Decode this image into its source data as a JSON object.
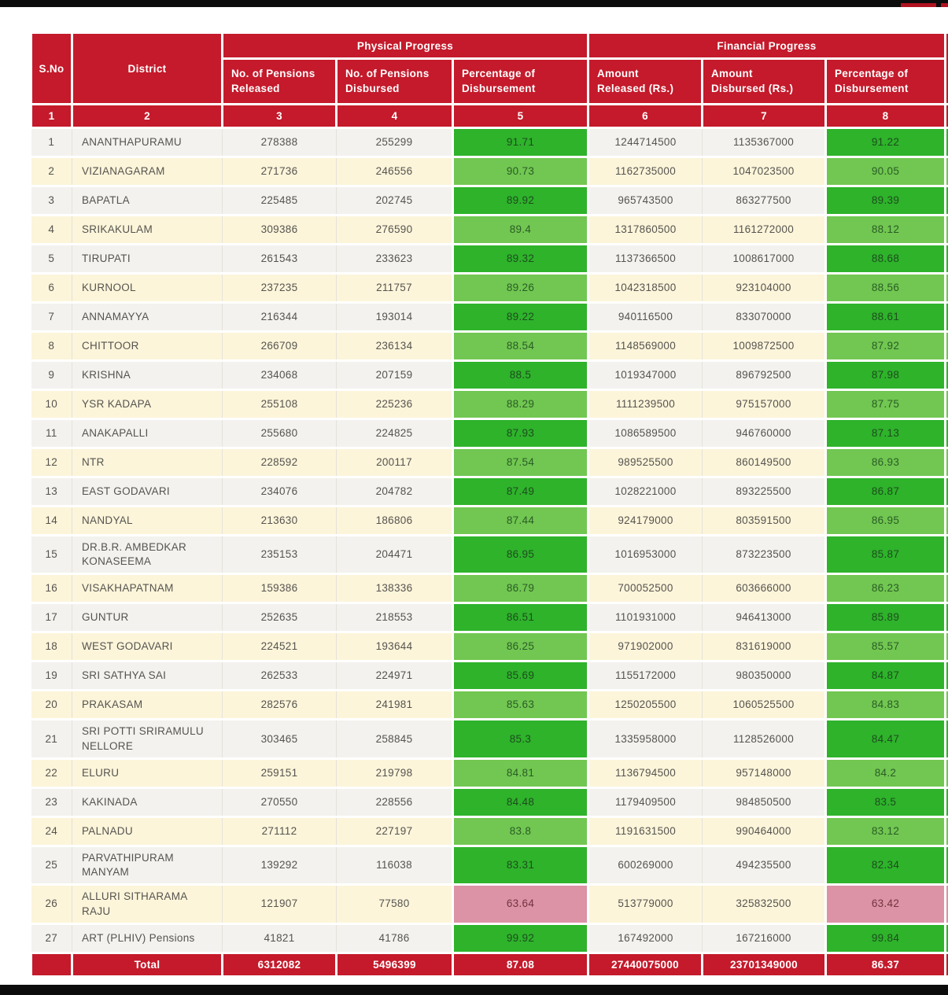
{
  "colors": {
    "header_red": "#c41a2b",
    "dark_green": "#2eb32b",
    "light_green": "#71c751",
    "low_performance_pink": "#db93a5",
    "row_stripe_gray": "#f3f2ef",
    "row_stripe_cream": "#fcf5da",
    "chrome_bar_black": "#0c0c0c"
  },
  "table": {
    "groups": [
      {
        "label": "Physical Progress"
      },
      {
        "label": "Financial Progress"
      }
    ],
    "columns": [
      {
        "label": "S.No",
        "num": "1"
      },
      {
        "label": "District",
        "num": "2"
      },
      {
        "label": "No. of Pensions\nReleased",
        "num": "3"
      },
      {
        "label": "No. of Pensions\nDisbursed",
        "num": "4"
      },
      {
        "label": "Percentage of\nDisbursement",
        "num": "5"
      },
      {
        "label": "Amount\nReleased (Rs.)",
        "num": "6"
      },
      {
        "label": "Amount\nDisbursed (Rs.)",
        "num": "7"
      },
      {
        "label": "Percentage of\nDisbursement",
        "num": "8"
      }
    ],
    "rows": [
      {
        "sno": "1",
        "district": "ANANTHAPURAMU",
        "pensions_released": "278388",
        "pensions_disbursed": "255299",
        "pct_physical": "91.71",
        "amount_released": "1244714500",
        "amount_disbursed": "1135367000",
        "pct_financial": "91.22",
        "tone": "dg"
      },
      {
        "sno": "2",
        "district": "VIZIANAGARAM",
        "pensions_released": "271736",
        "pensions_disbursed": "246556",
        "pct_physical": "90.73",
        "amount_released": "1162735000",
        "amount_disbursed": "1047023500",
        "pct_financial": "90.05",
        "tone": "lg"
      },
      {
        "sno": "3",
        "district": "BAPATLA",
        "pensions_released": "225485",
        "pensions_disbursed": "202745",
        "pct_physical": "89.92",
        "amount_released": "965743500",
        "amount_disbursed": "863277500",
        "pct_financial": "89.39",
        "tone": "dg"
      },
      {
        "sno": "4",
        "district": "SRIKAKULAM",
        "pensions_released": "309386",
        "pensions_disbursed": "276590",
        "pct_physical": "89.4",
        "amount_released": "1317860500",
        "amount_disbursed": "1161272000",
        "pct_financial": "88.12",
        "tone": "lg"
      },
      {
        "sno": "5",
        "district": "TIRUPATI",
        "pensions_released": "261543",
        "pensions_disbursed": "233623",
        "pct_physical": "89.32",
        "amount_released": "1137366500",
        "amount_disbursed": "1008617000",
        "pct_financial": "88.68",
        "tone": "dg"
      },
      {
        "sno": "6",
        "district": "KURNOOL",
        "pensions_released": "237235",
        "pensions_disbursed": "211757",
        "pct_physical": "89.26",
        "amount_released": "1042318500",
        "amount_disbursed": "923104000",
        "pct_financial": "88.56",
        "tone": "lg"
      },
      {
        "sno": "7",
        "district": "ANNAMAYYA",
        "pensions_released": "216344",
        "pensions_disbursed": "193014",
        "pct_physical": "89.22",
        "amount_released": "940116500",
        "amount_disbursed": "833070000",
        "pct_financial": "88.61",
        "tone": "dg"
      },
      {
        "sno": "8",
        "district": "CHITTOOR",
        "pensions_released": "266709",
        "pensions_disbursed": "236134",
        "pct_physical": "88.54",
        "amount_released": "1148569000",
        "amount_disbursed": "1009872500",
        "pct_financial": "87.92",
        "tone": "lg"
      },
      {
        "sno": "9",
        "district": "KRISHNA",
        "pensions_released": "234068",
        "pensions_disbursed": "207159",
        "pct_physical": "88.5",
        "amount_released": "1019347000",
        "amount_disbursed": "896792500",
        "pct_financial": "87.98",
        "tone": "dg"
      },
      {
        "sno": "10",
        "district": "YSR KADAPA",
        "pensions_released": "255108",
        "pensions_disbursed": "225236",
        "pct_physical": "88.29",
        "amount_released": "1111239500",
        "amount_disbursed": "975157000",
        "pct_financial": "87.75",
        "tone": "lg"
      },
      {
        "sno": "11",
        "district": "ANAKAPALLI",
        "pensions_released": "255680",
        "pensions_disbursed": "224825",
        "pct_physical": "87.93",
        "amount_released": "1086589500",
        "amount_disbursed": "946760000",
        "pct_financial": "87.13",
        "tone": "dg"
      },
      {
        "sno": "12",
        "district": "NTR",
        "pensions_released": "228592",
        "pensions_disbursed": "200117",
        "pct_physical": "87.54",
        "amount_released": "989525500",
        "amount_disbursed": "860149500",
        "pct_financial": "86.93",
        "tone": "lg"
      },
      {
        "sno": "13",
        "district": "EAST GODAVARI",
        "pensions_released": "234076",
        "pensions_disbursed": "204782",
        "pct_physical": "87.49",
        "amount_released": "1028221000",
        "amount_disbursed": "893225500",
        "pct_financial": "86.87",
        "tone": "dg"
      },
      {
        "sno": "14",
        "district": "NANDYAL",
        "pensions_released": "213630",
        "pensions_disbursed": "186806",
        "pct_physical": "87.44",
        "amount_released": "924179000",
        "amount_disbursed": "803591500",
        "pct_financial": "86.95",
        "tone": "lg"
      },
      {
        "sno": "15",
        "district": "DR.B.R. AMBEDKAR KONASEEMA",
        "pensions_released": "235153",
        "pensions_disbursed": "204471",
        "pct_physical": "86.95",
        "amount_released": "1016953000",
        "amount_disbursed": "873223500",
        "pct_financial": "85.87",
        "tone": "dg"
      },
      {
        "sno": "16",
        "district": "VISAKHAPATNAM",
        "pensions_released": "159386",
        "pensions_disbursed": "138336",
        "pct_physical": "86.79",
        "amount_released": "700052500",
        "amount_disbursed": "603666000",
        "pct_financial": "86.23",
        "tone": "lg"
      },
      {
        "sno": "17",
        "district": "GUNTUR",
        "pensions_released": "252635",
        "pensions_disbursed": "218553",
        "pct_physical": "86.51",
        "amount_released": "1101931000",
        "amount_disbursed": "946413000",
        "pct_financial": "85.89",
        "tone": "dg"
      },
      {
        "sno": "18",
        "district": "WEST GODAVARI",
        "pensions_released": "224521",
        "pensions_disbursed": "193644",
        "pct_physical": "86.25",
        "amount_released": "971902000",
        "amount_disbursed": "831619000",
        "pct_financial": "85.57",
        "tone": "lg"
      },
      {
        "sno": "19",
        "district": "SRI SATHYA SAI",
        "pensions_released": "262533",
        "pensions_disbursed": "224971",
        "pct_physical": "85.69",
        "amount_released": "1155172000",
        "amount_disbursed": "980350000",
        "pct_financial": "84.87",
        "tone": "dg"
      },
      {
        "sno": "20",
        "district": "PRAKASAM",
        "pensions_released": "282576",
        "pensions_disbursed": "241981",
        "pct_physical": "85.63",
        "amount_released": "1250205500",
        "amount_disbursed": "1060525500",
        "pct_financial": "84.83",
        "tone": "lg"
      },
      {
        "sno": "21",
        "district": "SRI POTTI SRIRAMULU NELLORE",
        "pensions_released": "303465",
        "pensions_disbursed": "258845",
        "pct_physical": "85.3",
        "amount_released": "1335958000",
        "amount_disbursed": "1128526000",
        "pct_financial": "84.47",
        "tone": "dg"
      },
      {
        "sno": "22",
        "district": "ELURU",
        "pensions_released": "259151",
        "pensions_disbursed": "219798",
        "pct_physical": "84.81",
        "amount_released": "1136794500",
        "amount_disbursed": "957148000",
        "pct_financial": "84.2",
        "tone": "lg"
      },
      {
        "sno": "23",
        "district": "KAKINADA",
        "pensions_released": "270550",
        "pensions_disbursed": "228556",
        "pct_physical": "84.48",
        "amount_released": "1179409500",
        "amount_disbursed": "984850500",
        "pct_financial": "83.5",
        "tone": "dg"
      },
      {
        "sno": "24",
        "district": "PALNADU",
        "pensions_released": "271112",
        "pensions_disbursed": "227197",
        "pct_physical": "83.8",
        "amount_released": "1191631500",
        "amount_disbursed": "990464000",
        "pct_financial": "83.12",
        "tone": "lg"
      },
      {
        "sno": "25",
        "district": "PARVATHIPURAM MANYAM",
        "pensions_released": "139292",
        "pensions_disbursed": "116038",
        "pct_physical": "83.31",
        "amount_released": "600269000",
        "amount_disbursed": "494235500",
        "pct_financial": "82.34",
        "tone": "dg"
      },
      {
        "sno": "26",
        "district": "ALLURI SITHARAMA RAJU",
        "pensions_released": "121907",
        "pensions_disbursed": "77580",
        "pct_physical": "63.64",
        "amount_released": "513779000",
        "amount_disbursed": "325832500",
        "pct_financial": "63.42",
        "tone": "pk"
      },
      {
        "sno": "27",
        "district": "ART (PLHIV) Pensions",
        "pensions_released": "41821",
        "pensions_disbursed": "41786",
        "pct_physical": "99.92",
        "amount_released": "167492000",
        "amount_disbursed": "167216000",
        "pct_financial": "99.84",
        "tone": "dg"
      }
    ],
    "total": {
      "label": "Total",
      "pensions_released": "6312082",
      "pensions_disbursed": "5496399",
      "pct_physical": "87.08",
      "amount_released": "27440075000",
      "amount_disbursed": "23701349000",
      "pct_financial": "86.37"
    }
  }
}
